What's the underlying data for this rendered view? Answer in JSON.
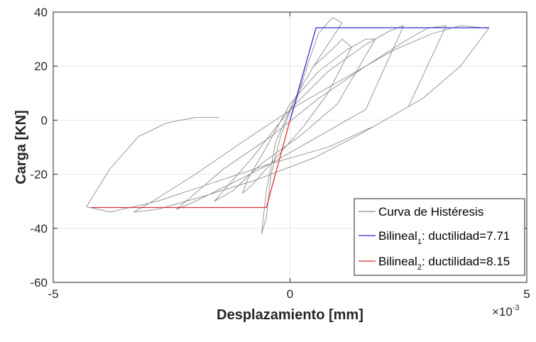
{
  "chart_data": {
    "type": "line",
    "xlabel": "Desplazamiento [mm]",
    "ylabel": "Carga [KN]",
    "x_multiplier": {
      "base": "×10",
      "exponent": "-3"
    },
    "xlim": [
      -0.005,
      0.005
    ],
    "ylim": [
      -60,
      40
    ],
    "x_ticks": [
      -0.005,
      0,
      0.005
    ],
    "x_tick_labels": [
      "-5",
      "0",
      "5"
    ],
    "y_ticks": [
      -60,
      -40,
      -20,
      0,
      20,
      40
    ],
    "y_tick_labels": [
      "-60",
      "-40",
      "-20",
      "0",
      "20",
      "40"
    ],
    "grid": true,
    "legend_position": "bottom-right",
    "colors": {
      "hysteresis": "#8c8c8c",
      "bilinear1": "#2f2fd6",
      "bilinear2": "#e03030",
      "grid": "#e6e6e6",
      "axes": "#262626"
    },
    "series": [
      {
        "name": "Curva de Histéresis",
        "legend_label": "Curva de Histéresis",
        "color": "#8c8c8c",
        "x": [
          0,
          0.0004,
          0.0006,
          0.0009,
          0.0011,
          0.0005,
          0.0001,
          -0.0003,
          -0.0005,
          -0.0006,
          -0.0005,
          -0.0004,
          -0.0002,
          0.0001,
          0.0005,
          0.001,
          0.0011,
          0.0013,
          0.0008,
          0.0003,
          -0.0003,
          -0.0008,
          -0.001,
          -0.0009,
          -0.0005,
          0,
          0.0006,
          0.0012,
          0.0016,
          0.0018,
          0.001,
          0.0002,
          -0.0006,
          -0.0012,
          -0.0016,
          -0.0014,
          -0.0008,
          0,
          0.0008,
          0.0016,
          0.0021,
          0.0024,
          0.0016,
          0.0006,
          -0.0004,
          -0.0013,
          -0.002,
          -0.0024,
          -0.0022,
          -0.0014,
          -0.0004,
          0.0006,
          0.0016,
          0.0024,
          0.0029,
          0.0033,
          0.0025,
          0.0015,
          0.0005,
          -0.0007,
          -0.0018,
          -0.0028,
          -0.0033,
          -0.0029,
          -0.002,
          -0.001,
          0.0002,
          0.0012,
          0.0022,
          0.003,
          0.0036,
          0.0042,
          0.0036,
          0.0028,
          0.0018,
          0.0008,
          -0.0004,
          -0.0016,
          -0.0028,
          -0.0038,
          -0.0043,
          -0.0038,
          -0.0032,
          -0.0026,
          -0.002,
          -0.0015
        ],
        "y": [
          0,
          22,
          32,
          38,
          36,
          20,
          8,
          -8,
          -26,
          -42,
          -36,
          -20,
          -6,
          8,
          20,
          28,
          30,
          27,
          10,
          -2,
          -14,
          -24,
          -27,
          -22,
          -10,
          6,
          18,
          26,
          30,
          30,
          6,
          -6,
          -16,
          -26,
          -30,
          -26,
          -14,
          4,
          18,
          28,
          33,
          35,
          4,
          -6,
          -16,
          -24,
          -30,
          -33,
          -30,
          -18,
          -6,
          8,
          20,
          29,
          34,
          35,
          5,
          -5,
          -14,
          -22,
          -28,
          -33,
          -34,
          -30,
          -20,
          -8,
          6,
          16,
          26,
          32,
          35,
          34,
          20,
          8,
          -2,
          -10,
          -16,
          -23,
          -30,
          -34,
          -32,
          -18,
          -6,
          -1,
          1,
          1
        ]
      },
      {
        "name": "Bilineal_1",
        "legend_label": "Bilineal",
        "legend_sub": "1",
        "legend_suffix": ": ductilidad=7.71",
        "color": "#2f2fd6",
        "x": [
          0,
          0.00055,
          0.0042
        ],
        "y": [
          0,
          34.2,
          34.2
        ]
      },
      {
        "name": "Bilineal_2",
        "legend_label": "Bilineal",
        "legend_sub": "2",
        "legend_suffix": ": ductilidad=8.15",
        "color": "#e03030",
        "x": [
          0,
          -0.0005,
          -0.0042
        ],
        "y": [
          0,
          -32.3,
          -32.3
        ]
      }
    ]
  }
}
